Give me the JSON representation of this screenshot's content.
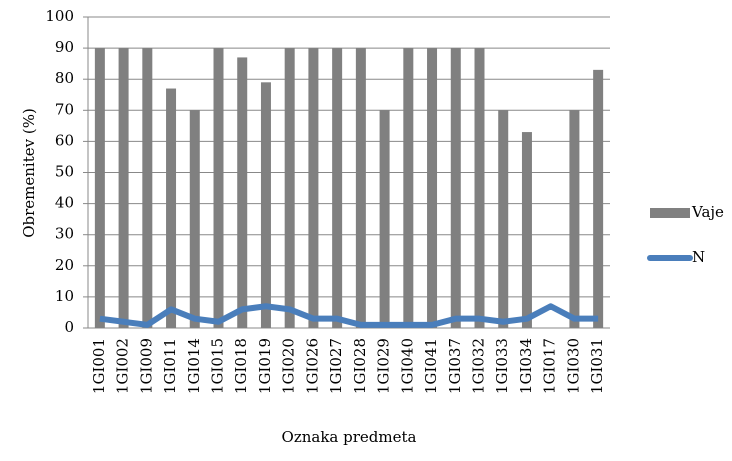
{
  "chart_data": {
    "type": "bar",
    "x_label": "Oznaka predmeta",
    "y_label": "Obremenitev (%)",
    "categories": [
      "1GI001",
      "1GI002",
      "1GI009",
      "1GI011",
      "1GI014",
      "1GI015",
      "1GI018",
      "1GI019",
      "1GI020",
      "1GI026",
      "1GI027",
      "1GI028",
      "1GI029",
      "1GI040",
      "1GI041",
      "1GI037",
      "1GI032",
      "1GI033",
      "1GI034",
      "1GI017",
      "1GI030",
      "1GI031"
    ],
    "series": [
      {
        "name": "Vaje",
        "type": "bar",
        "color": "#808080",
        "values": [
          90,
          90,
          90,
          77,
          70,
          90,
          87,
          79,
          90,
          90,
          90,
          90,
          70,
          90,
          90,
          90,
          90,
          70,
          63,
          null,
          70,
          83
        ]
      },
      {
        "name": "N",
        "type": "line",
        "color": "#4a7ebb",
        "values": [
          3,
          2,
          1,
          6,
          3,
          2,
          6,
          7,
          6,
          3,
          3,
          1,
          1,
          1,
          1,
          3,
          3,
          2,
          3,
          7,
          3,
          3
        ]
      }
    ],
    "ylim": [
      0,
      100
    ],
    "yticks": [
      0,
      10,
      20,
      30,
      40,
      50,
      60,
      70,
      80,
      90,
      100
    ],
    "grid": true,
    "legend": "right"
  }
}
